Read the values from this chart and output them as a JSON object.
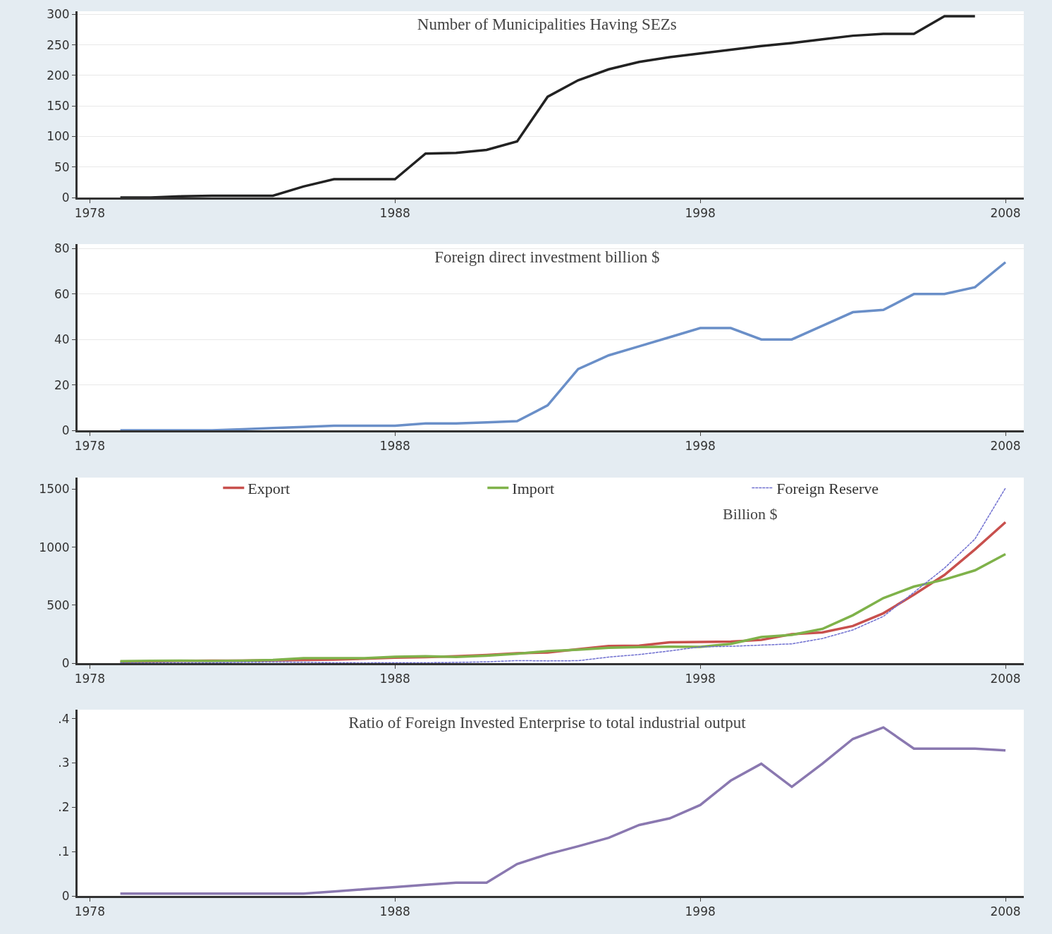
{
  "chart_data": [
    {
      "type": "line",
      "title": "Number of Municipalities Having SEZs",
      "x": [
        1979,
        1980,
        1981,
        1982,
        1983,
        1984,
        1985,
        1986,
        1987,
        1988,
        1989,
        1990,
        1991,
        1992,
        1993,
        1994,
        1995,
        1996,
        1997,
        1998,
        1999,
        2000,
        2001,
        2002,
        2003,
        2004,
        2005,
        2006,
        2007
      ],
      "series": [
        {
          "color": "#222222",
          "values": [
            0,
            0,
            2,
            3,
            3,
            3,
            18,
            30,
            30,
            30,
            72,
            73,
            78,
            92,
            165,
            192,
            210,
            222,
            230,
            236,
            242,
            248,
            253,
            259,
            265,
            268,
            268,
            297,
            297
          ]
        }
      ],
      "xlim": [
        1977.6,
        2008.6
      ],
      "xticks": [
        1978,
        1988,
        1998,
        2008
      ],
      "ylim": [
        0,
        305
      ],
      "yticks": [
        0,
        50,
        100,
        150,
        200,
        250,
        300
      ],
      "grid": "y",
      "legend": false
    },
    {
      "type": "line",
      "title": "Foreign direct investment billion $",
      "x": [
        1979,
        1980,
        1981,
        1982,
        1983,
        1984,
        1985,
        1986,
        1987,
        1988,
        1989,
        1990,
        1991,
        1992,
        1993,
        1994,
        1995,
        1996,
        1997,
        1998,
        1999,
        2000,
        2001,
        2002,
        2003,
        2004,
        2005,
        2006,
        2007,
        2008
      ],
      "series": [
        {
          "color": "#6a8fc8",
          "values": [
            0,
            0,
            0,
            0,
            0.5,
            1,
            1.5,
            2,
            2,
            2,
            3,
            3,
            3.5,
            4,
            11,
            27,
            33,
            37,
            41,
            45,
            45,
            40,
            40,
            46,
            52,
            53,
            60,
            60,
            63,
            74
          ]
        }
      ],
      "xlim": [
        1977.6,
        2008.6
      ],
      "xticks": [
        1978,
        1988,
        1998,
        2008
      ],
      "ylim": [
        0,
        82
      ],
      "yticks": [
        0,
        20,
        40,
        60,
        80
      ],
      "grid": "y",
      "legend": false
    },
    {
      "type": "line",
      "annotations": [
        "Billion $"
      ],
      "x": [
        1979,
        1980,
        1981,
        1982,
        1983,
        1984,
        1985,
        1986,
        1987,
        1988,
        1989,
        1990,
        1991,
        1992,
        1993,
        1994,
        1995,
        1996,
        1997,
        1998,
        1999,
        2000,
        2001,
        2002,
        2003,
        2004,
        2005,
        2006,
        2007,
        2008
      ],
      "series": [
        {
          "name": "Export",
          "color": "#c8504d",
          "values": [
            10,
            15,
            20,
            22,
            22,
            24,
            27,
            30,
            38,
            47,
            52,
            60,
            70,
            85,
            92,
            120,
            148,
            150,
            180,
            183,
            185,
            200,
            250,
            265,
            320,
            430,
            590,
            760,
            980,
            1215
          ]
        },
        {
          "name": "Import",
          "color": "#7fb24a",
          "values": [
            16,
            20,
            22,
            19,
            21,
            27,
            42,
            43,
            43,
            55,
            59,
            53,
            64,
            80,
            104,
            116,
            132,
            139,
            142,
            140,
            166,
            225,
            244,
            295,
            413,
            561,
            660,
            720,
            800,
            940
          ]
        },
        {
          "name": "Foreign Reserve",
          "color": "#6f6fd0",
          "line_style": "dashed",
          "values": [
            1,
            2,
            3,
            3,
            7,
            9,
            8,
            3,
            2,
            3,
            3,
            6,
            11,
            22,
            19,
            21,
            52,
            74,
            105,
            140,
            145,
            155,
            166,
            212,
            286,
            403,
            610,
            819,
            1070,
            1510
          ]
        }
      ],
      "xlim": [
        1977.6,
        2008.6
      ],
      "xticks": [
        1978,
        1988,
        1998,
        2008
      ],
      "ylim": [
        0,
        1600
      ],
      "yticks": [
        0,
        500,
        1000,
        1500
      ],
      "grid": false,
      "legend": "top"
    },
    {
      "type": "line",
      "title": "Ratio of Foreign Invested Enterprise to total industrial output",
      "x": [
        1979,
        1980,
        1981,
        1982,
        1983,
        1984,
        1985,
        1986,
        1987,
        1988,
        1989,
        1990,
        1991,
        1992,
        1993,
        1994,
        1995,
        1996,
        1997,
        1998,
        1999,
        2000,
        2001,
        2002,
        2003,
        2004,
        2005,
        2006,
        2007,
        2008
      ],
      "series": [
        {
          "color": "#8a78b0",
          "values": [
            0.005,
            0.005,
            0.005,
            0.005,
            0.005,
            0.005,
            0.005,
            0.01,
            0.015,
            0.02,
            0.025,
            0.03,
            0.03,
            0.072,
            0.094,
            0.112,
            0.131,
            0.16,
            0.175,
            0.205,
            0.26,
            0.298,
            0.246,
            0.298,
            0.354,
            0.38,
            0.332,
            0.332,
            0.332,
            0.328
          ]
        }
      ],
      "xlim": [
        1977.6,
        2008.6
      ],
      "xticks": [
        1978,
        1988,
        1998,
        2008
      ],
      "ylim": [
        0,
        0.42
      ],
      "yticks": [
        0,
        {
          "value": 0.1,
          "label": ".1"
        },
        {
          "value": 0.2,
          "label": ".2"
        },
        {
          "value": 0.3,
          "label": ".3"
        },
        {
          "value": 0.4,
          "label": ".4"
        }
      ],
      "grid": false,
      "legend": false
    }
  ]
}
